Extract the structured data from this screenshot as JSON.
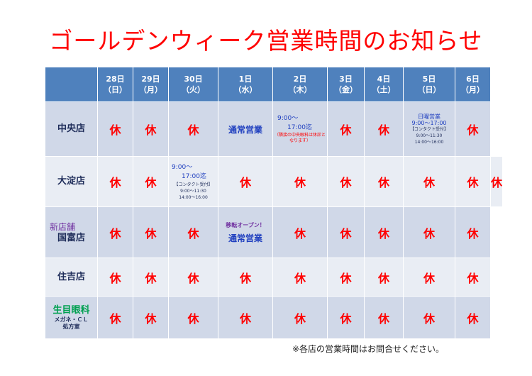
{
  "title": "ゴールデンウィーク営業時間のお知らせ",
  "header": [
    {
      "day": "28日",
      "dow": "（日）"
    },
    {
      "day": "29日",
      "dow": "（月）"
    },
    {
      "day": "30日",
      "dow": "（火）"
    },
    {
      "day": "1日",
      "dow": "（水）"
    },
    {
      "day": "2日",
      "dow": "（木）"
    },
    {
      "day": "3日",
      "dow": "（金）"
    },
    {
      "day": "4日",
      "dow": "（土）"
    },
    {
      "day": "5日",
      "dow": "（日）"
    },
    {
      "day": "6日",
      "dow": "（月）"
    }
  ],
  "closed": "休",
  "normal": "通常営業",
  "stores": {
    "chuo": {
      "name": "中央店",
      "hours_line1": "9:00～",
      "hours_line2": "17:00迄",
      "note": "（隣接の中央眼科は休診となります）",
      "sunday_label": "日曜営業",
      "sunday_hours": "9:00～17:00",
      "contact": "【コンタクト受付】",
      "contact_am": "9:00～11:30",
      "contact_pm": "14:00～16:00"
    },
    "oyodo": {
      "name": "大淀店",
      "hours_line1": "9:00～",
      "hours_line2": "17:00迄",
      "contact": "【コンタクト受付】",
      "contact_am": "9:00～11:30",
      "contact_pm": "14:00～16:00"
    },
    "kunitomi": {
      "prefix": "新店舗",
      "name": "国富店",
      "tag": "移転オープン！"
    },
    "sumiyoshi": {
      "name": "住吉店"
    },
    "ikime": {
      "name": "生目眼科",
      "sub1": "メガネ・ＣＬ",
      "sub2": "処方室"
    }
  },
  "footnote": "※各店の営業時間はお問合せください。",
  "colors": {
    "title": "#ff0000",
    "header_bg": "#4f81bd",
    "row_dark": "#d0d8e8",
    "row_light": "#e9edf4",
    "closed": "#ff0000",
    "normal": "#1f3fbf"
  }
}
